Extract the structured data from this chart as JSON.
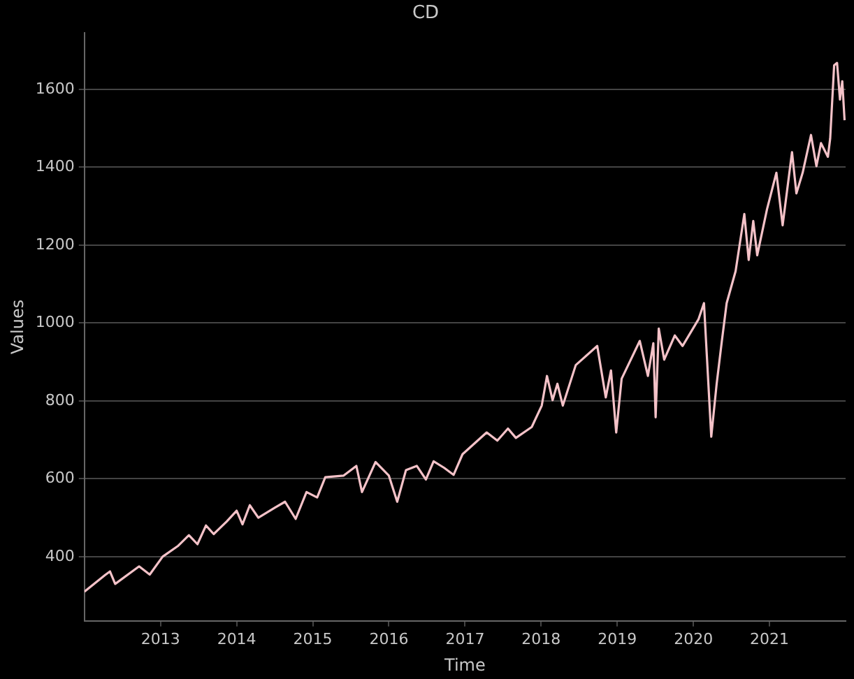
{
  "chart_data": {
    "type": "line",
    "title": "CD",
    "xlabel": "Time",
    "ylabel": "Values",
    "grid": "y",
    "marker": "none",
    "line_style": "solid",
    "xlim": [
      "2012-01-01",
      "2022-01-01"
    ],
    "xticks": [
      "2013",
      "2014",
      "2015",
      "2016",
      "2017",
      "2018",
      "2019",
      "2020",
      "2021"
    ],
    "ylim": [
      235,
      1745
    ],
    "yticks": [
      400,
      600,
      800,
      1000,
      1200,
      1400,
      1600
    ],
    "series": [
      {
        "color": "#f4c2c8",
        "x": [
          "2012-01-01",
          "2012-04-08",
          "2012-05-03",
          "2012-05-28",
          "2012-09-20",
          "2012-11-10",
          "2013-01-11",
          "2013-03-27",
          "2013-05-17",
          "2013-06-27",
          "2013-08-07",
          "2013-09-13",
          "2013-11-14",
          "2014-01-01",
          "2014-01-29",
          "2014-03-05",
          "2014-04-15",
          "2014-07-01",
          "2014-08-21",
          "2014-10-11",
          "2014-12-02",
          "2015-01-22",
          "2015-03-02",
          "2015-05-28",
          "2015-07-29",
          "2015-08-25",
          "2015-10-29",
          "2016-01-01",
          "2016-02-10",
          "2016-03-23",
          "2016-05-14",
          "2016-06-27",
          "2016-08-03",
          "2016-09-23",
          "2016-11-07",
          "2016-12-20",
          "2017-04-15",
          "2017-06-05",
          "2017-07-26",
          "2017-09-02",
          "2017-11-17",
          "2018-01-04",
          "2018-01-29",
          "2018-02-25",
          "2018-03-20",
          "2018-04-15",
          "2018-06-16",
          "2018-09-27",
          "2018-11-07",
          "2018-12-02",
          "2018-12-27",
          "2019-01-22",
          "2019-04-19",
          "2019-05-28",
          "2019-06-23",
          "2019-07-04",
          "2019-07-19",
          "2019-08-14",
          "2019-10-04",
          "2019-11-10",
          "2020-01-26",
          "2020-02-21",
          "2020-03-27",
          "2020-04-22",
          "2020-05-17",
          "2020-06-09",
          "2020-07-22",
          "2020-09-02",
          "2020-09-23",
          "2020-10-15",
          "2020-11-03",
          "2020-12-20",
          "2021-02-03",
          "2021-03-05",
          "2021-04-19",
          "2021-05-10",
          "2021-06-09",
          "2021-07-19",
          "2021-08-14",
          "2021-09-05",
          "2021-10-08",
          "2021-10-19",
          "2021-11-07",
          "2021-11-21",
          "2021-12-05",
          "2021-12-16",
          "2021-12-27"
        ],
        "values": [
          310,
          352,
          362,
          330,
          375,
          354,
          400,
          428,
          455,
          432,
          480,
          458,
          490,
          518,
          483,
          532,
          500,
          525,
          541,
          497,
          566,
          552,
          604,
          608,
          633,
          566,
          643,
          608,
          541,
          622,
          633,
          598,
          645,
          628,
          610,
          663,
          719,
          698,
          729,
          705,
          733,
          788,
          864,
          802,
          844,
          788,
          892,
          941,
          809,
          878,
          719,
          857,
          954,
          864,
          948,
          758,
          986,
          906,
          968,
          941,
          1010,
          1051,
          708,
          844,
          954,
          1051,
          1133,
          1280,
          1162,
          1262,
          1174,
          1292,
          1386,
          1251,
          1439,
          1333,
          1386,
          1483,
          1403,
          1462,
          1427,
          1474,
          1662,
          1668,
          1574,
          1621,
          1521
        ]
      }
    ]
  }
}
